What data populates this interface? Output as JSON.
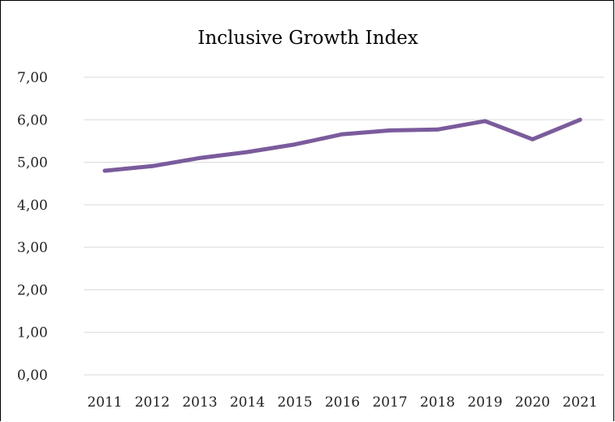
{
  "chart_data": {
    "type": "line",
    "title": "Inclusive Growth Index",
    "xlabel": "",
    "ylabel": "",
    "categories": [
      "2011",
      "2012",
      "2013",
      "2014",
      "2015",
      "2016",
      "2017",
      "2018",
      "2019",
      "2020",
      "2021"
    ],
    "series": [
      {
        "values": [
          4.8,
          4.91,
          5.1,
          5.24,
          5.42,
          5.66,
          5.75,
          5.77,
          5.97,
          5.54,
          6.0
        ]
      }
    ],
    "ylim": [
      0,
      7
    ],
    "yticks": [
      "0,00",
      "1,00",
      "2,00",
      "3,00",
      "4,00",
      "5,00",
      "6,00",
      "7,00"
    ],
    "grid": true,
    "legend": "none",
    "colors": {
      "line": "#7A5B9C",
      "grid": "#D9D9D9"
    }
  }
}
